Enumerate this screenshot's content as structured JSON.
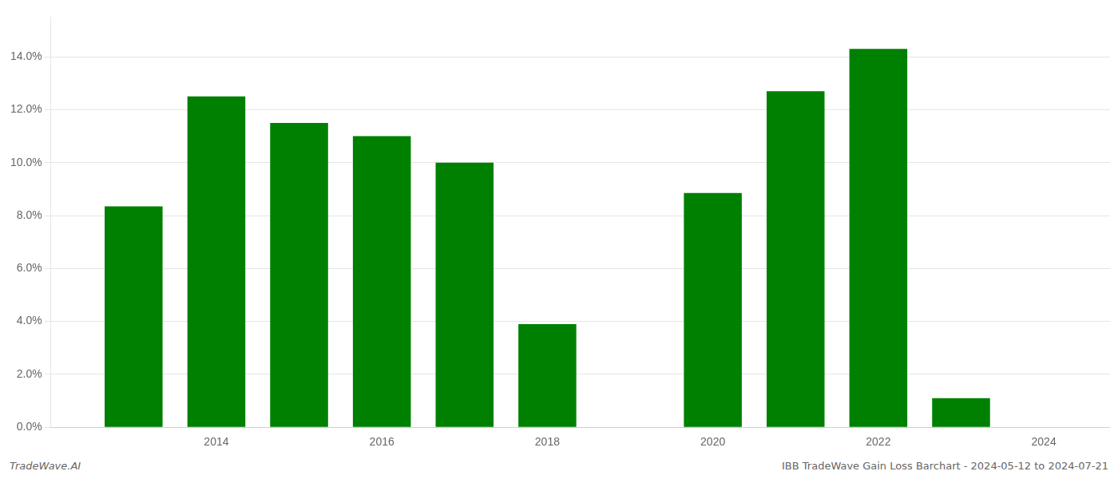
{
  "chart_data": {
    "type": "bar",
    "x": [
      2013,
      2014,
      2015,
      2016,
      2017,
      2018,
      2020,
      2021,
      2022,
      2023
    ],
    "values": [
      0.0835,
      0.125,
      0.115,
      0.11,
      0.1,
      0.039,
      0.0885,
      0.127,
      0.143,
      0.011
    ],
    "color": "#008000",
    "xlim": [
      2012.0,
      2024.8
    ],
    "xticks": [
      2014,
      2016,
      2018,
      2020,
      2022,
      2024
    ],
    "ylim": [
      0.0,
      0.155
    ],
    "yticks": [
      {
        "value": 0.0,
        "label": "0.0%"
      },
      {
        "value": 0.02,
        "label": "2.0%"
      },
      {
        "value": 0.04,
        "label": "4.0%"
      },
      {
        "value": 0.06,
        "label": "6.0%"
      },
      {
        "value": 0.08,
        "label": "8.0%"
      },
      {
        "value": 0.1,
        "label": "10.0%"
      },
      {
        "value": 0.12,
        "label": "12.0%"
      },
      {
        "value": 0.14,
        "label": "14.0%"
      }
    ],
    "grid": "y",
    "annotations": [
      "TradeWave.AI",
      "IBB TradeWave Gain Loss Barchart - 2024-05-12 to 2024-07-21"
    ]
  }
}
